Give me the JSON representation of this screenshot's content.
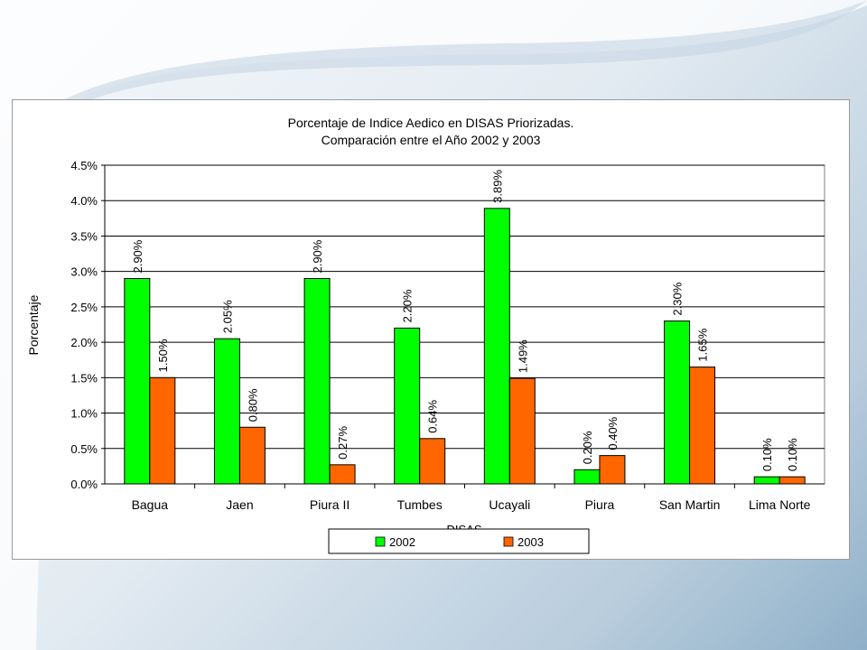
{
  "chart_data": {
    "type": "bar",
    "title_line1": "Porcentaje de Indice Aedico en DISAS Priorizadas.",
    "title_line2": "Comparación entre el Año 2002 y 2003",
    "xlabel": "DISAS",
    "ylabel": "Porcentaje",
    "ylim": [
      0,
      4.5
    ],
    "yticks": [
      "0.0%",
      "0.5%",
      "1.0%",
      "1.5%",
      "2.0%",
      "2.5%",
      "3.0%",
      "3.5%",
      "4.0%",
      "4.5%"
    ],
    "grid": true,
    "legend_position": "bottom",
    "categories": [
      "Bagua",
      "Jaen",
      "Piura II",
      "Tumbes",
      "Ucayali",
      "Piura",
      "San Martin",
      "Lima Norte"
    ],
    "series": [
      {
        "name": "2002",
        "color": "#00ff00",
        "values": [
          2.9,
          2.05,
          2.9,
          2.2,
          3.89,
          0.2,
          2.3,
          0.1
        ],
        "labels": [
          "2.90%",
          "2.05%",
          "2.90%",
          "2.20%",
          "3.89%",
          "0.20%",
          "2.30%",
          "0.10%"
        ]
      },
      {
        "name": "2003",
        "color": "#ff6600",
        "values": [
          1.5,
          0.8,
          0.27,
          0.64,
          1.49,
          0.4,
          1.65,
          0.1
        ],
        "labels": [
          "1.50%",
          "0.80%",
          "0.27%",
          "0.64%",
          "1.49%",
          "0.40%",
          "1.65%",
          "0.10%"
        ]
      }
    ]
  }
}
